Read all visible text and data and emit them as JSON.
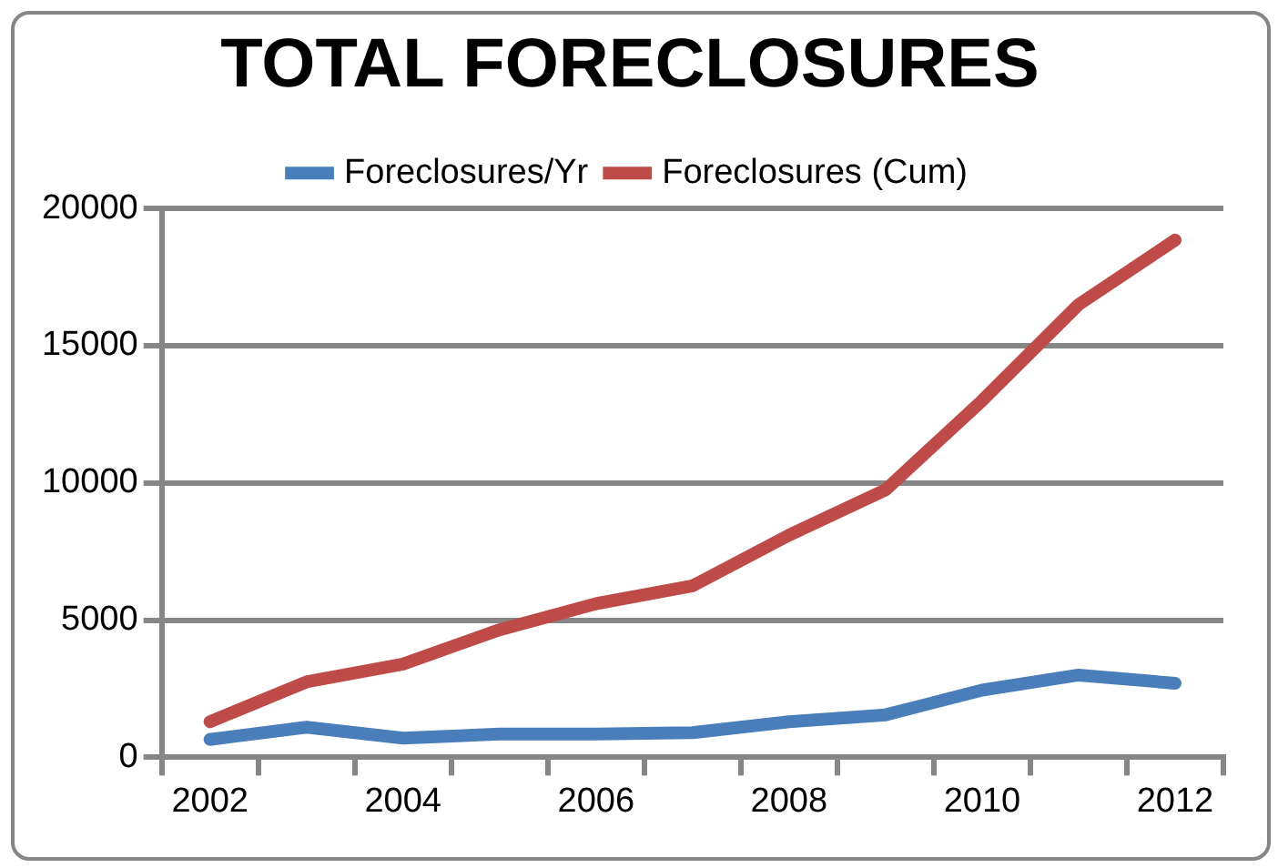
{
  "chart_data": {
    "type": "line",
    "title": "TOTAL FORECLOSURES",
    "categories": [
      "2002",
      null,
      "2004",
      null,
      "2006",
      null,
      "2008",
      null,
      "2010",
      null,
      "2012"
    ],
    "series": [
      {
        "name": "Foreclosures/Yr",
        "color": "#4a7ebb",
        "values": [
          650,
          1100,
          700,
          850,
          850,
          900,
          1300,
          1550,
          2450,
          3000,
          2700
        ]
      },
      {
        "name": "Foreclosures (Cum)",
        "color": "#be4b48",
        "values": [
          1300,
          2750,
          3400,
          4650,
          5600,
          6250,
          8100,
          9750,
          13000,
          16500,
          18850
        ]
      }
    ],
    "ylim": [
      0,
      20000
    ],
    "yticks": [
      0,
      5000,
      10000,
      15000,
      20000
    ],
    "grid": "y",
    "legend": "top",
    "marker": "none",
    "line_style": "solid"
  }
}
